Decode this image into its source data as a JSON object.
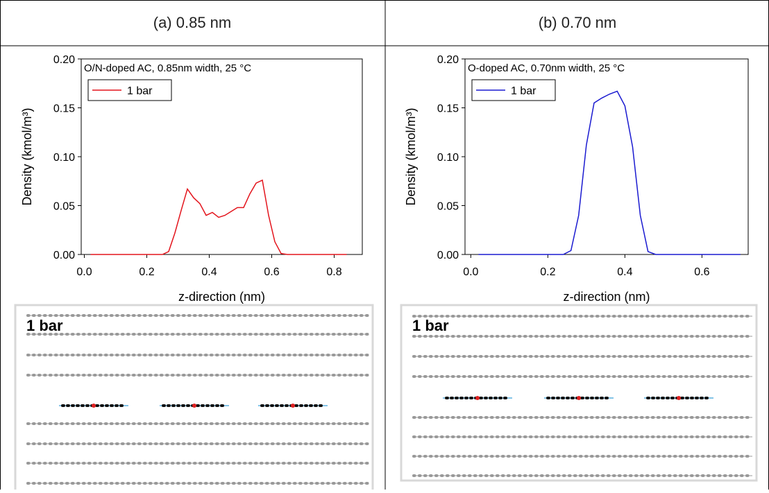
{
  "table": {
    "headers": [
      "(a) 0.85 nm",
      "(b) 0.70 nm"
    ]
  },
  "chart_data": [
    {
      "type": "line",
      "title": "O/N-doped AC, 0.85nm width, 25 °C",
      "x_label": "z-direction (nm)",
      "y_label": "Density (kmol/m³)",
      "x": [
        0.02,
        0.25,
        0.27,
        0.29,
        0.31,
        0.33,
        0.35,
        0.37,
        0.39,
        0.41,
        0.43,
        0.45,
        0.47,
        0.49,
        0.51,
        0.53,
        0.55,
        0.57,
        0.59,
        0.61,
        0.63,
        0.65,
        0.84
      ],
      "series": [
        {
          "name": "1 bar",
          "color": "#e3141c",
          "values": [
            0,
            0,
            0.003,
            0.022,
            0.045,
            0.067,
            0.058,
            0.052,
            0.04,
            0.043,
            0.038,
            0.04,
            0.044,
            0.048,
            0.048,
            0.062,
            0.073,
            0.076,
            0.04,
            0.013,
            0.001,
            0,
            0
          ]
        }
      ],
      "xlim": [
        -0.01,
        0.89
      ],
      "ylim": [
        0,
        0.2
      ],
      "xticks": [
        {
          "value": 0,
          "label": "0.0"
        },
        {
          "value": 0.2,
          "label": "0.2"
        },
        {
          "value": 0.4,
          "label": "0.4"
        },
        {
          "value": 0.6,
          "label": "0.6"
        },
        {
          "value": 0.8,
          "label": "0.8"
        }
      ],
      "yticks": [
        {
          "value": 0,
          "label": "0.00"
        },
        {
          "value": 0.05,
          "label": "0.05"
        },
        {
          "value": 0.1,
          "label": "0.10"
        },
        {
          "value": 0.15,
          "label": "0.15"
        },
        {
          "value": 0.2,
          "label": "0.20"
        }
      ],
      "legend": "upper-left"
    },
    {
      "type": "line",
      "title": "O-doped AC, 0.70nm width, 25 °C",
      "x_label": "z-direction (nm)",
      "y_label": "Density (kmol/m³)",
      "x": [
        0.02,
        0.24,
        0.26,
        0.28,
        0.3,
        0.32,
        0.34,
        0.36,
        0.38,
        0.4,
        0.42,
        0.44,
        0.46,
        0.48,
        0.7
      ],
      "series": [
        {
          "name": "1 bar",
          "color": "#1a1ad0",
          "values": [
            0,
            0,
            0.004,
            0.04,
            0.112,
            0.155,
            0.16,
            0.164,
            0.167,
            0.152,
            0.11,
            0.04,
            0.003,
            0,
            0
          ]
        }
      ],
      "xlim": [
        -0.015,
        0.72
      ],
      "ylim": [
        0,
        0.2
      ],
      "xticks": [
        {
          "value": 0,
          "label": "0.0"
        },
        {
          "value": 0.2,
          "label": "0.2"
        },
        {
          "value": 0.4,
          "label": "0.4"
        },
        {
          "value": 0.6,
          "label": "0.6"
        }
      ],
      "yticks": [
        {
          "value": 0,
          "label": "0.00"
        },
        {
          "value": 0.05,
          "label": "0.05"
        },
        {
          "value": 0.1,
          "label": "0.10"
        },
        {
          "value": 0.15,
          "label": "0.15"
        },
        {
          "value": 0.2,
          "label": "0.20"
        }
      ],
      "legend": "upper-left"
    }
  ],
  "snapshots": [
    {
      "label": "1 bar"
    },
    {
      "label": "1 bar"
    }
  ]
}
